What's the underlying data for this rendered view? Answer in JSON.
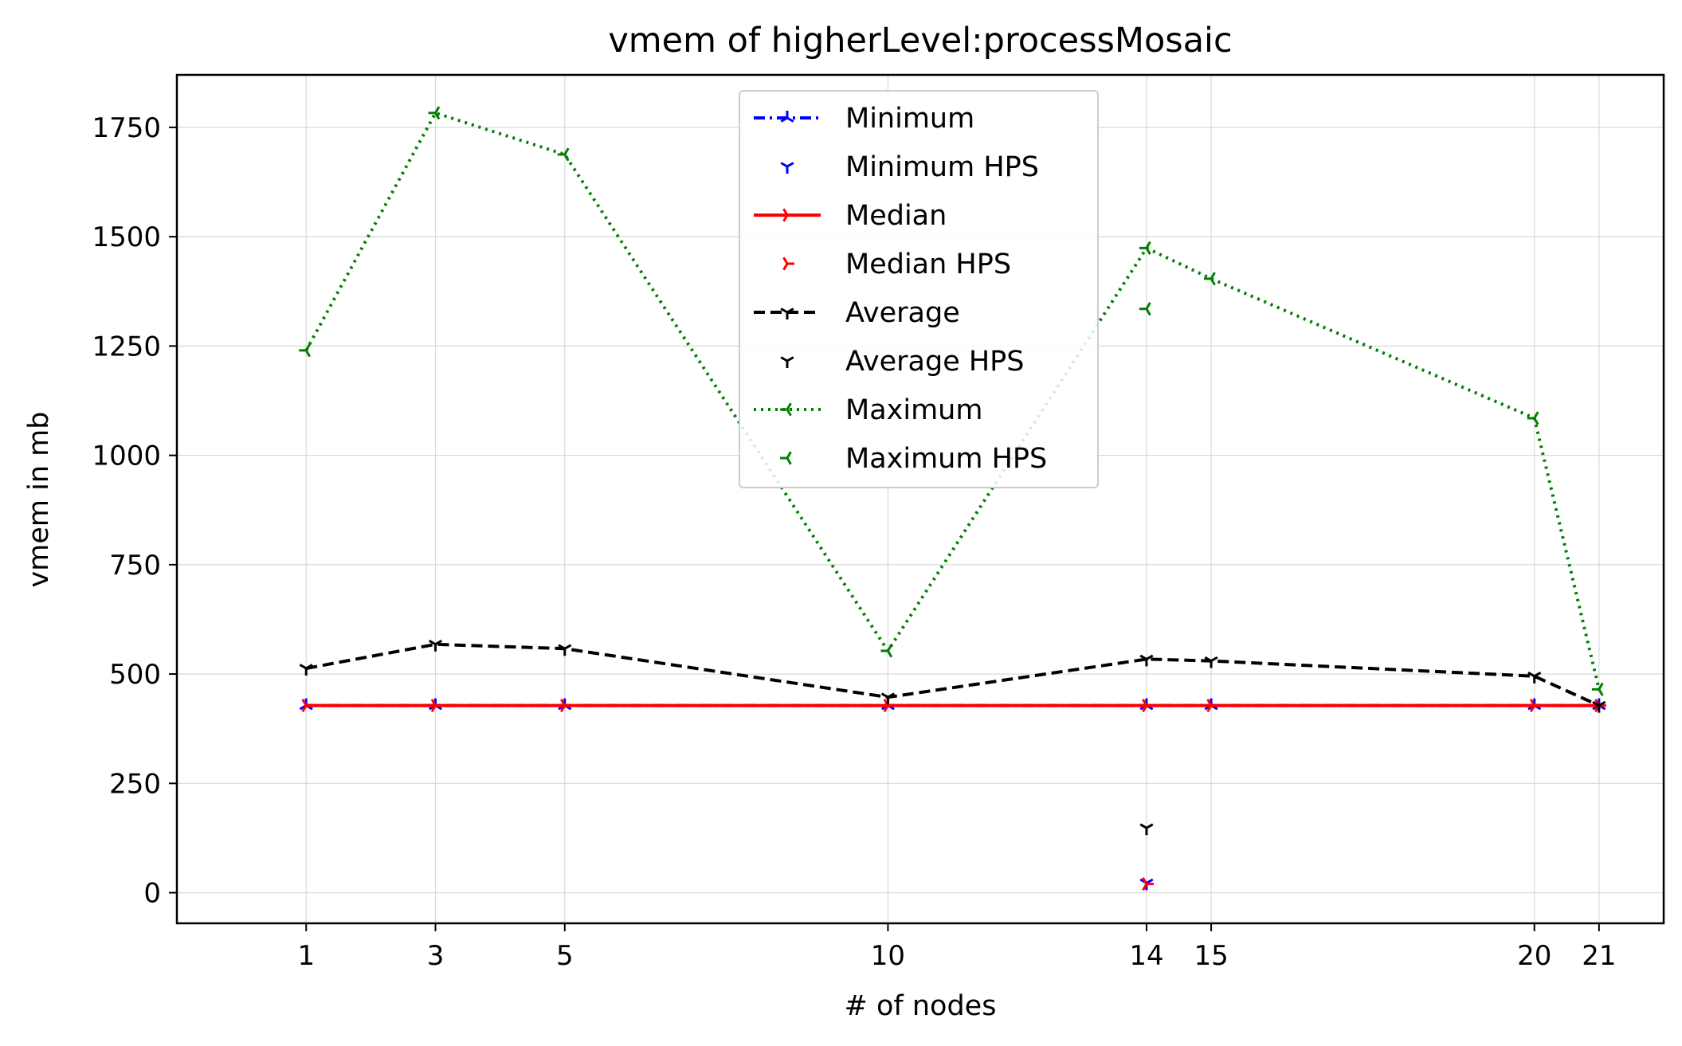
{
  "chart_data": {
    "type": "line",
    "title": "vmem of higherLevel:processMosaic",
    "xlabel": "# of nodes",
    "ylabel": "vmem in mb",
    "x_ticks": [
      1,
      3,
      5,
      10,
      14,
      15,
      20,
      21
    ],
    "y_ticks": [
      0,
      250,
      500,
      750,
      1000,
      1250,
      1500,
      1750
    ],
    "xlim": [
      -1.0,
      22.0
    ],
    "ylim": [
      -70,
      1870
    ],
    "grid": true,
    "legend_position": "upper-center",
    "x": [
      1,
      3,
      5,
      10,
      14,
      15,
      20,
      21
    ],
    "series": [
      {
        "name": "Minimum",
        "style": "dashdot",
        "marker": "tri_up",
        "color": "#0000ff",
        "values": [
          428,
          428,
          428,
          428,
          428,
          428,
          428,
          428
        ]
      },
      {
        "name": "Minimum HPS",
        "style": "none",
        "marker": "tri_down",
        "color": "#0000ff",
        "points": [
          [
            14,
            22
          ]
        ]
      },
      {
        "name": "Median",
        "style": "solid",
        "marker": "tri_right",
        "color": "#ff0000",
        "values": [
          428,
          428,
          428,
          428,
          428,
          428,
          428,
          428
        ]
      },
      {
        "name": "Median HPS",
        "style": "none",
        "marker": "tri_right",
        "color": "#ff0000",
        "points": [
          [
            14,
            20
          ]
        ]
      },
      {
        "name": "Average",
        "style": "dashed",
        "marker": "tri_down",
        "color": "#000000",
        "values": [
          513,
          568,
          558,
          447,
          534,
          530,
          495,
          428
        ]
      },
      {
        "name": "Average HPS",
        "style": "none",
        "marker": "tri_down",
        "color": "#000000",
        "points": [
          [
            14,
            148
          ]
        ]
      },
      {
        "name": "Maximum",
        "style": "dotted",
        "marker": "tri_left",
        "color": "#008000",
        "values": [
          1240,
          1783,
          1688,
          553,
          1474,
          1404,
          1085,
          465
        ]
      },
      {
        "name": "Maximum HPS",
        "style": "none",
        "marker": "tri_left",
        "color": "#008000",
        "points": [
          [
            14,
            1335
          ]
        ]
      }
    ]
  }
}
